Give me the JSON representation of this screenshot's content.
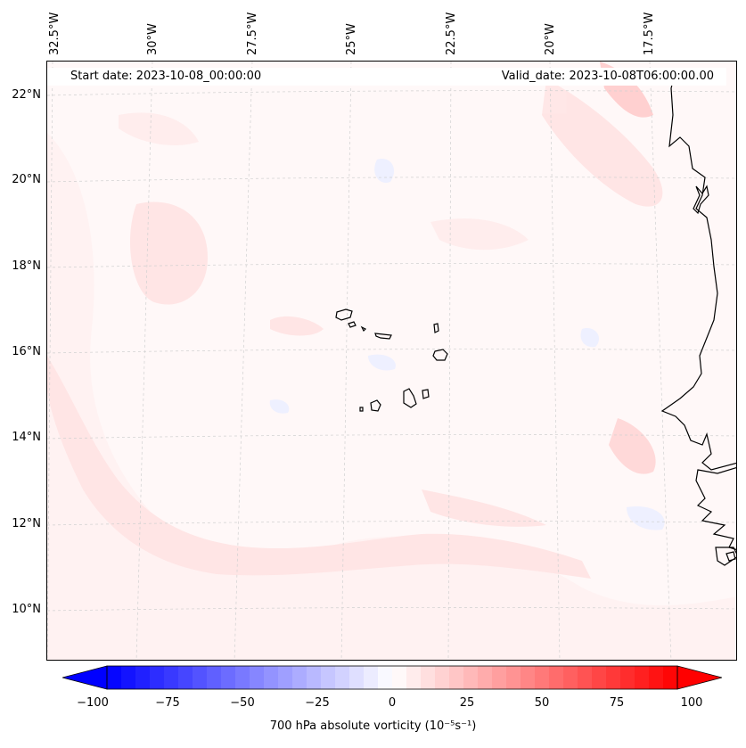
{
  "header": {
    "start_date": "Start date: 2023-10-08_00:00:00",
    "valid_date": "Valid_date: 2023-10-08T06:00:00.00"
  },
  "longitude_labels": [
    "32.5°W",
    "30°W",
    "27.5°W",
    "25°W",
    "22.5°W",
    "20°W",
    "17.5°W"
  ],
  "latitude_labels": [
    "22°N",
    "20°N",
    "18°N",
    "16°N",
    "14°N",
    "12°N",
    "10°N"
  ],
  "colorbar": {
    "tick_labels": [
      "−100",
      "−75",
      "−50",
      "−25",
      "0",
      "25",
      "50",
      "75",
      "100"
    ],
    "label": "700 hPa absolute vorticity (10⁻⁵s⁻¹)",
    "range": [
      -100,
      100
    ],
    "low_color": "#0000ff",
    "mid_color": "#ffffff",
    "high_color": "#ff0000"
  },
  "map": {
    "ocean_tint": "#fff8f8",
    "positive_tint": "#ffe6e6",
    "negative_tint": "#f2f4ff",
    "coastline_color": "#000000",
    "gridline_color": "#cccccc"
  }
}
